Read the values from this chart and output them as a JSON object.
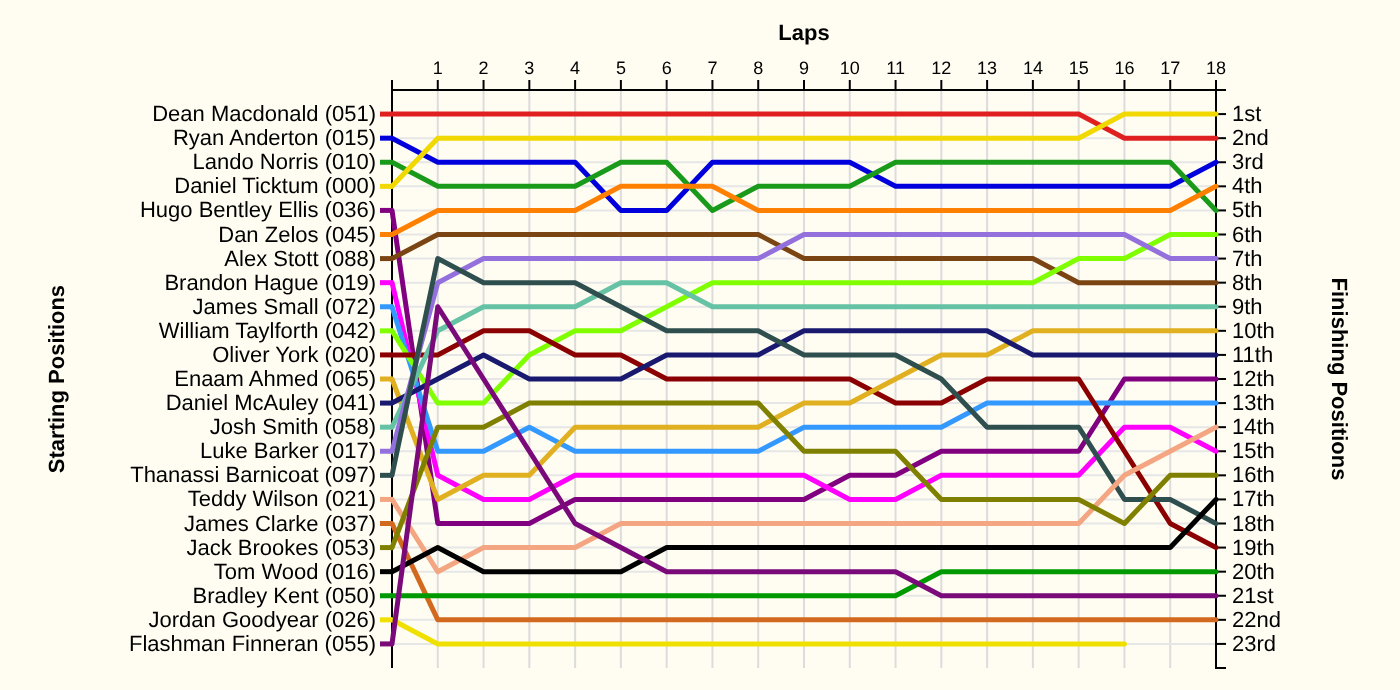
{
  "chart_data": {
    "type": "line",
    "xlabel": "Laps",
    "ylabel": "Finishing Positions",
    "annotations": [
      "Starting Positions"
    ],
    "x": [
      0,
      1,
      2,
      3,
      4,
      5,
      6,
      7,
      8,
      9,
      10,
      11,
      12,
      13,
      14,
      15,
      16,
      17,
      18
    ],
    "xlim": [
      0,
      18
    ],
    "xticks": [
      1,
      2,
      3,
      4,
      5,
      6,
      7,
      8,
      9,
      10,
      11,
      12,
      13,
      14,
      15,
      16,
      17,
      18
    ],
    "ylim": [
      24,
      0
    ],
    "yticks": [
      {
        "value": 1,
        "label": "1st"
      },
      {
        "value": 2,
        "label": "2nd"
      },
      {
        "value": 3,
        "label": "3rd"
      },
      {
        "value": 4,
        "label": "4th"
      },
      {
        "value": 5,
        "label": "5th"
      },
      {
        "value": 6,
        "label": "6th"
      },
      {
        "value": 7,
        "label": "7th"
      },
      {
        "value": 8,
        "label": "8th"
      },
      {
        "value": 9,
        "label": "9th"
      },
      {
        "value": 10,
        "label": "10th"
      },
      {
        "value": 11,
        "label": "11th"
      },
      {
        "value": 12,
        "label": "12th"
      },
      {
        "value": 13,
        "label": "13th"
      },
      {
        "value": 14,
        "label": "14th"
      },
      {
        "value": 15,
        "label": "15th"
      },
      {
        "value": 16,
        "label": "16th"
      },
      {
        "value": 17,
        "label": "17th"
      },
      {
        "value": 18,
        "label": "18th"
      },
      {
        "value": 19,
        "label": "19th"
      },
      {
        "value": 20,
        "label": "20th"
      },
      {
        "value": 21,
        "label": "21st"
      },
      {
        "value": 22,
        "label": "22nd"
      },
      {
        "value": 23,
        "label": "23rd"
      }
    ],
    "grid": true,
    "legend": "left",
    "marker": "none",
    "line_style": "solid",
    "series": [
      {
        "name": "Dean Macdonald (051)",
        "color": "#e02020",
        "values": [
          1,
          1,
          1,
          1,
          1,
          1,
          1,
          1,
          1,
          1,
          1,
          1,
          1,
          1,
          1,
          1,
          2,
          2,
          2
        ]
      },
      {
        "name": "Ryan Anderton (015)",
        "color": "#0000dd",
        "values": [
          2,
          3,
          3,
          3,
          3,
          5,
          5,
          3,
          3,
          3,
          3,
          4,
          4,
          4,
          4,
          4,
          4,
          4,
          3
        ]
      },
      {
        "name": "Lando Norris (010)",
        "color": "#1a9a1a",
        "values": [
          3,
          4,
          4,
          4,
          4,
          3,
          3,
          5,
          4,
          4,
          4,
          3,
          3,
          3,
          3,
          3,
          3,
          3,
          5
        ]
      },
      {
        "name": "Daniel Ticktum (000)",
        "color": "#f0d800",
        "values": [
          4,
          2,
          2,
          2,
          2,
          2,
          2,
          2,
          2,
          2,
          2,
          2,
          2,
          2,
          2,
          2,
          1,
          1,
          1
        ]
      },
      {
        "name": "Hugo Bentley Ellis (036)",
        "color": "#800080",
        "values": [
          5,
          18,
          18,
          18,
          17,
          17,
          17,
          17,
          17,
          17,
          16,
          16,
          15,
          15,
          15,
          15,
          12,
          12,
          12
        ]
      },
      {
        "name": "Dan Zelos (045)",
        "color": "#ff8000",
        "values": [
          6,
          5,
          5,
          5,
          5,
          4,
          4,
          4,
          5,
          5,
          5,
          5,
          5,
          5,
          5,
          5,
          5,
          5,
          4
        ]
      },
      {
        "name": "Alex Stott (088)",
        "color": "#7b4513",
        "values": [
          7,
          6,
          6,
          6,
          6,
          6,
          6,
          6,
          6,
          7,
          7,
          7,
          7,
          7,
          7,
          8,
          8,
          8,
          8
        ]
      },
      {
        "name": "Brandon Hague (019)",
        "color": "#ff00ff",
        "values": [
          8,
          16,
          17,
          17,
          16,
          16,
          16,
          16,
          16,
          16,
          17,
          17,
          16,
          16,
          16,
          16,
          14,
          14,
          15
        ]
      },
      {
        "name": "James Small (072)",
        "color": "#3399ff",
        "values": [
          9,
          15,
          15,
          14,
          15,
          15,
          15,
          15,
          15,
          14,
          14,
          14,
          14,
          13,
          13,
          13,
          13,
          13,
          13
        ]
      },
      {
        "name": "William Taylforth (042)",
        "color": "#80ff00",
        "values": [
          10,
          13,
          13,
          11,
          10,
          10,
          9,
          8,
          8,
          8,
          8,
          8,
          8,
          8,
          8,
          7,
          7,
          6,
          6
        ]
      },
      {
        "name": "Oliver York (020)",
        "color": "#8b0000",
        "values": [
          11,
          11,
          10,
          10,
          11,
          11,
          12,
          12,
          12,
          12,
          12,
          13,
          13,
          12,
          12,
          12,
          15,
          18,
          19
        ]
      },
      {
        "name": "Enaam Ahmed (065)",
        "color": "#e0b020",
        "values": [
          12,
          17,
          16,
          16,
          14,
          14,
          14,
          14,
          14,
          13,
          13,
          12,
          11,
          11,
          10,
          10,
          10,
          10,
          10
        ]
      },
      {
        "name": "Daniel McAuley (041)",
        "color": "#191970",
        "values": [
          13,
          12,
          11,
          12,
          12,
          12,
          11,
          11,
          11,
          10,
          10,
          10,
          10,
          10,
          11,
          11,
          11,
          11,
          11
        ]
      },
      {
        "name": "Josh Smith (058)",
        "color": "#66c2a5",
        "values": [
          14,
          10,
          9,
          9,
          9,
          8,
          8,
          9,
          9,
          9,
          9,
          9,
          9,
          9,
          9,
          9,
          9,
          9,
          9
        ]
      },
      {
        "name": "Luke Barker (017)",
        "color": "#9370db",
        "values": [
          15,
          8,
          7,
          7,
          7,
          7,
          7,
          7,
          7,
          6,
          6,
          6,
          6,
          6,
          6,
          6,
          6,
          7,
          7
        ]
      },
      {
        "name": "Thanassi Barnicoat (097)",
        "color": "#2f4f4f",
        "values": [
          16,
          7,
          8,
          8,
          8,
          9,
          10,
          10,
          10,
          11,
          11,
          11,
          12,
          14,
          14,
          14,
          17,
          17,
          18
        ]
      },
      {
        "name": "Teddy Wilson (021)",
        "color": "#f4a582",
        "values": [
          17,
          20,
          19,
          19,
          19,
          18,
          18,
          18,
          18,
          18,
          18,
          18,
          18,
          18,
          18,
          18,
          16,
          15,
          14
        ]
      },
      {
        "name": "James Clarke (037)",
        "color": "#d2691e",
        "values": [
          18,
          22,
          22,
          22,
          22,
          22,
          22,
          22,
          22,
          22,
          22,
          22,
          22,
          22,
          22,
          22,
          22,
          22,
          22
        ]
      },
      {
        "name": "Jack Brookes (053)",
        "color": "#808000",
        "values": [
          19,
          14,
          14,
          13,
          13,
          13,
          13,
          13,
          13,
          15,
          15,
          15,
          17,
          17,
          17,
          17,
          18,
          16,
          16
        ]
      },
      {
        "name": "Tom Wood (016)",
        "color": "#000000",
        "values": [
          20,
          19,
          20,
          20,
          20,
          20,
          19,
          19,
          19,
          19,
          19,
          19,
          19,
          19,
          19,
          19,
          19,
          19,
          17
        ]
      },
      {
        "name": "Bradley Kent (050)",
        "color": "#009900",
        "values": [
          21,
          21,
          21,
          21,
          21,
          21,
          21,
          21,
          21,
          21,
          21,
          21,
          20,
          20,
          20,
          20,
          20,
          20,
          20
        ]
      },
      {
        "name": "Jordan Goodyear (026)",
        "color": "#f0e000",
        "values": [
          22,
          23,
          23,
          23,
          23,
          23,
          23,
          23,
          23,
          23,
          23,
          23,
          23,
          23,
          23,
          23,
          23,
          null,
          null
        ]
      },
      {
        "name": "Flashman Finneran (055)",
        "color": "#7a0a7a",
        "values": [
          23,
          9,
          12,
          15,
          18,
          19,
          20,
          20,
          20,
          20,
          20,
          20,
          21,
          21,
          21,
          21,
          21,
          21,
          21
        ]
      }
    ]
  }
}
